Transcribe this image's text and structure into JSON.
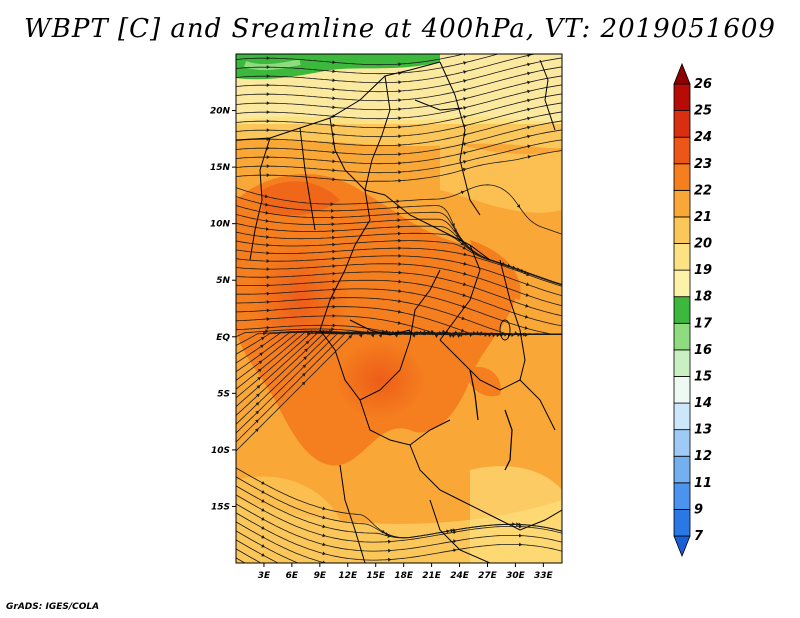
{
  "title": "WBPT [C] and Sreamline at 400hPa, VT: 2019051609",
  "footer": "GrADS: IGES/COLA",
  "map": {
    "lon_range": [
      0,
      35
    ],
    "lat_range": [
      -20,
      25
    ],
    "x_ticks": [
      "3E",
      "6E",
      "9E",
      "12E",
      "15E",
      "18E",
      "21E",
      "24E",
      "27E",
      "30E",
      "33E"
    ],
    "x_tick_values": [
      3,
      6,
      9,
      12,
      15,
      18,
      21,
      24,
      27,
      30,
      33
    ],
    "y_ticks": [
      "20N",
      "15N",
      "10N",
      "5N",
      "EQ",
      "5S",
      "10S",
      "15S"
    ],
    "y_tick_values": [
      20,
      15,
      10,
      5,
      0,
      -5,
      -10,
      -15
    ]
  },
  "colorbar": {
    "levels": [
      "7",
      "9",
      "11",
      "12",
      "13",
      "14",
      "15",
      "16",
      "17",
      "18",
      "19",
      "20",
      "21",
      "22",
      "23",
      "24",
      "25",
      "26"
    ],
    "colors": [
      "#1a5fd6",
      "#2a78e6",
      "#4a94ef",
      "#74afef",
      "#9ecaf5",
      "#cce6fa",
      "#eef9f4",
      "#c8f0c0",
      "#8fdc80",
      "#3cb93c",
      "#fcf3a8",
      "#fde283",
      "#fcc75a",
      "#f9a736",
      "#f57f1e",
      "#ec5718",
      "#d92e10",
      "#b70c06",
      "#900000"
    ]
  },
  "icons": {
    "arrow": "streamline-arrow-icon"
  }
}
